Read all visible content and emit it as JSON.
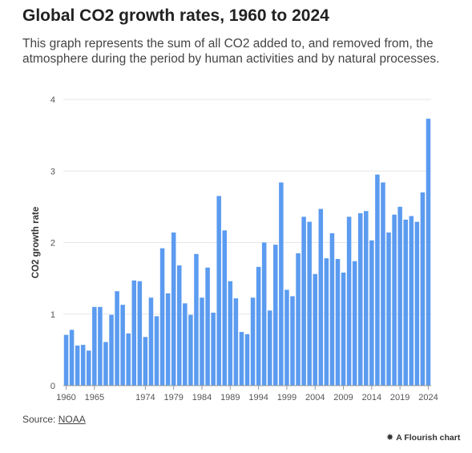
{
  "header": {
    "title": "Global CO2 growth rates, 1960 to 2024",
    "subtitle": "This graph represents the sum of all CO2 added to, and removed from, the atmosphere during the period by human activities and by natural processes."
  },
  "footer": {
    "source_label": "Source: ",
    "source_link": "NOAA",
    "credit": "A Flourish chart"
  },
  "colors": {
    "bar": "#5b9bf0",
    "grid": "#e6e6e6",
    "axis": "#999999"
  },
  "chart_data": {
    "type": "bar",
    "title": "Global CO2 growth rates, 1960 to 2024",
    "xlabel": "",
    "ylabel": "CO2 growth rate",
    "ylim": [
      0,
      4
    ],
    "yticks": [
      0,
      1,
      2,
      3,
      4
    ],
    "xtick_labels": [
      1960,
      1965,
      1974,
      1979,
      1984,
      1989,
      1994,
      1999,
      2004,
      2009,
      2014,
      2019,
      2024
    ],
    "grid": true,
    "categories": [
      1960,
      1961,
      1962,
      1963,
      1964,
      1965,
      1966,
      1967,
      1968,
      1969,
      1970,
      1971,
      1972,
      1973,
      1974,
      1975,
      1976,
      1977,
      1978,
      1979,
      1980,
      1981,
      1982,
      1983,
      1984,
      1985,
      1986,
      1987,
      1988,
      1989,
      1990,
      1991,
      1992,
      1993,
      1994,
      1995,
      1996,
      1997,
      1998,
      1999,
      2000,
      2001,
      2002,
      2003,
      2004,
      2005,
      2006,
      2007,
      2008,
      2009,
      2010,
      2011,
      2012,
      2013,
      2014,
      2015,
      2016,
      2017,
      2018,
      2019,
      2020,
      2021,
      2022,
      2023,
      2024
    ],
    "values": [
      0.71,
      0.78,
      0.56,
      0.57,
      0.49,
      1.1,
      1.1,
      0.61,
      0.99,
      1.32,
      1.13,
      0.73,
      1.47,
      1.46,
      0.68,
      1.23,
      0.97,
      1.92,
      1.29,
      2.14,
      1.68,
      1.15,
      0.99,
      1.84,
      1.23,
      1.65,
      1.02,
      2.65,
      2.17,
      1.46,
      1.22,
      0.75,
      0.72,
      1.23,
      1.66,
      2.0,
      1.05,
      1.97,
      2.84,
      1.34,
      1.25,
      1.85,
      2.36,
      2.29,
      1.56,
      2.47,
      1.78,
      2.13,
      1.77,
      1.58,
      2.36,
      1.74,
      2.41,
      2.44,
      2.03,
      2.95,
      2.84,
      2.14,
      2.39,
      2.5,
      2.32,
      2.37,
      2.29,
      2.7,
      3.73
    ]
  }
}
